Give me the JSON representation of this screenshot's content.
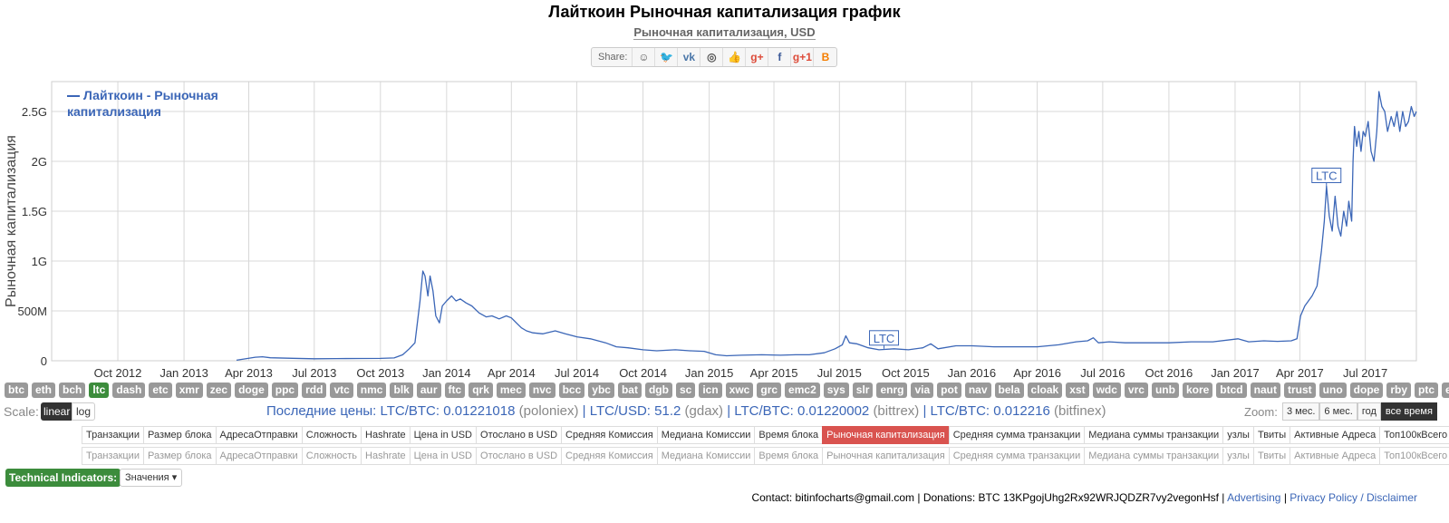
{
  "header": {
    "title": "Лайткоин Рыночная капитализация график",
    "subtitle": "Рыночная капитализация, USD"
  },
  "share": {
    "label": "Share:",
    "buttons": [
      {
        "name": "reddit-icon",
        "glyph": "☺",
        "color": "#555"
      },
      {
        "name": "twitter-icon",
        "glyph": "🐦",
        "color": "#1da1f2"
      },
      {
        "name": "vk-icon",
        "glyph": "vk",
        "color": "#4a76a8"
      },
      {
        "name": "weibo-icon",
        "glyph": "◎",
        "color": "#555"
      },
      {
        "name": "like-icon",
        "glyph": "👍",
        "color": "#4a76a8"
      },
      {
        "name": "googleplus-icon",
        "glyph": "g+",
        "color": "#dd4b39"
      },
      {
        "name": "facebook-icon",
        "glyph": "f",
        "color": "#3b5998"
      },
      {
        "name": "gplusone-icon",
        "glyph": "g+1",
        "color": "#dd4b39"
      },
      {
        "name": "blogger-icon",
        "glyph": "B",
        "color": "#f57d00"
      }
    ]
  },
  "chart_data": {
    "type": "line",
    "title": "Лайткоин Рыночная капитализация график",
    "subtitle": "Рыночная капитализация, USD",
    "ylabel": "Рыночная капитализация",
    "xlabel": "",
    "ylim": [
      0,
      2800000000
    ],
    "xlim": [
      "2012-07-01",
      "2017-09-10"
    ],
    "yticks": [
      {
        "v": 0,
        "label": "0"
      },
      {
        "v": 500000000,
        "label": "500M"
      },
      {
        "v": 1000000000,
        "label": "1G"
      },
      {
        "v": 1500000000,
        "label": "1.5G"
      },
      {
        "v": 2000000000,
        "label": "2G"
      },
      {
        "v": 2500000000,
        "label": "2.5G"
      }
    ],
    "xticks": [
      {
        "d": "2012-10-01",
        "label": "Oct 2012"
      },
      {
        "d": "2013-01-01",
        "label": "Jan 2013"
      },
      {
        "d": "2013-04-01",
        "label": "Apr 2013"
      },
      {
        "d": "2013-07-01",
        "label": "Jul 2013"
      },
      {
        "d": "2013-10-01",
        "label": "Oct 2013"
      },
      {
        "d": "2014-01-01",
        "label": "Jan 2014"
      },
      {
        "d": "2014-04-01",
        "label": "Apr 2014"
      },
      {
        "d": "2014-07-01",
        "label": "Jul 2014"
      },
      {
        "d": "2014-10-01",
        "label": "Oct 2014"
      },
      {
        "d": "2015-01-01",
        "label": "Jan 2015"
      },
      {
        "d": "2015-04-01",
        "label": "Apr 2015"
      },
      {
        "d": "2015-07-01",
        "label": "Jul 2015"
      },
      {
        "d": "2015-10-01",
        "label": "Oct 2015"
      },
      {
        "d": "2016-01-01",
        "label": "Jan 2016"
      },
      {
        "d": "2016-04-01",
        "label": "Apr 2016"
      },
      {
        "d": "2016-07-01",
        "label": "Jul 2016"
      },
      {
        "d": "2016-10-01",
        "label": "Oct 2016"
      },
      {
        "d": "2017-01-01",
        "label": "Jan 2017"
      },
      {
        "d": "2017-04-01",
        "label": "Apr 2017"
      },
      {
        "d": "2017-07-01",
        "label": "Jul 2017"
      }
    ],
    "grid": true,
    "legend": {
      "position": "top-left",
      "label": "Лайткоин - Рыночная капитализация"
    },
    "series": [
      {
        "name": "Лайткоин - Рыночная капитализация",
        "color": "#3b66b7",
        "points": [
          [
            "2013-03-15",
            5000000
          ],
          [
            "2013-04-10",
            35000000
          ],
          [
            "2013-04-20",
            40000000
          ],
          [
            "2013-05-01",
            30000000
          ],
          [
            "2013-06-01",
            25000000
          ],
          [
            "2013-07-01",
            20000000
          ],
          [
            "2013-08-01",
            22000000
          ],
          [
            "2013-09-01",
            23000000
          ],
          [
            "2013-10-01",
            24000000
          ],
          [
            "2013-10-20",
            28000000
          ],
          [
            "2013-11-01",
            60000000
          ],
          [
            "2013-11-10",
            120000000
          ],
          [
            "2013-11-18",
            180000000
          ],
          [
            "2013-11-25",
            600000000
          ],
          [
            "2013-11-29",
            900000000
          ],
          [
            "2013-12-02",
            850000000
          ],
          [
            "2013-12-06",
            650000000
          ],
          [
            "2013-12-09",
            850000000
          ],
          [
            "2013-12-13",
            700000000
          ],
          [
            "2013-12-17",
            450000000
          ],
          [
            "2013-12-22",
            380000000
          ],
          [
            "2013-12-26",
            550000000
          ],
          [
            "2014-01-01",
            600000000
          ],
          [
            "2014-01-08",
            650000000
          ],
          [
            "2014-01-14",
            600000000
          ],
          [
            "2014-01-20",
            620000000
          ],
          [
            "2014-01-28",
            580000000
          ],
          [
            "2014-02-05",
            550000000
          ],
          [
            "2014-02-15",
            480000000
          ],
          [
            "2014-02-25",
            440000000
          ],
          [
            "2014-03-05",
            450000000
          ],
          [
            "2014-03-15",
            420000000
          ],
          [
            "2014-03-25",
            450000000
          ],
          [
            "2014-04-01",
            430000000
          ],
          [
            "2014-04-08",
            380000000
          ],
          [
            "2014-04-15",
            330000000
          ],
          [
            "2014-04-22",
            300000000
          ],
          [
            "2014-05-01",
            280000000
          ],
          [
            "2014-05-15",
            270000000
          ],
          [
            "2014-06-01",
            300000000
          ],
          [
            "2014-06-15",
            270000000
          ],
          [
            "2014-07-01",
            240000000
          ],
          [
            "2014-07-20",
            220000000
          ],
          [
            "2014-08-10",
            180000000
          ],
          [
            "2014-08-25",
            140000000
          ],
          [
            "2014-09-10",
            130000000
          ],
          [
            "2014-10-01",
            110000000
          ],
          [
            "2014-10-20",
            100000000
          ],
          [
            "2014-11-15",
            110000000
          ],
          [
            "2014-12-05",
            100000000
          ],
          [
            "2014-12-25",
            95000000
          ],
          [
            "2015-01-10",
            60000000
          ],
          [
            "2015-01-25",
            50000000
          ],
          [
            "2015-02-15",
            55000000
          ],
          [
            "2015-03-15",
            60000000
          ],
          [
            "2015-04-10",
            55000000
          ],
          [
            "2015-05-01",
            60000000
          ],
          [
            "2015-05-20",
            60000000
          ],
          [
            "2015-06-10",
            80000000
          ],
          [
            "2015-06-25",
            120000000
          ],
          [
            "2015-07-05",
            160000000
          ],
          [
            "2015-07-10",
            250000000
          ],
          [
            "2015-07-15",
            180000000
          ],
          [
            "2015-07-25",
            170000000
          ],
          [
            "2015-08-10",
            130000000
          ],
          [
            "2015-08-25",
            110000000
          ],
          [
            "2015-09-15",
            120000000
          ],
          [
            "2015-10-05",
            110000000
          ],
          [
            "2015-10-25",
            130000000
          ],
          [
            "2015-11-05",
            170000000
          ],
          [
            "2015-11-15",
            120000000
          ],
          [
            "2015-12-10",
            150000000
          ],
          [
            "2016-01-01",
            150000000
          ],
          [
            "2016-02-01",
            140000000
          ],
          [
            "2016-03-01",
            140000000
          ],
          [
            "2016-04-01",
            140000000
          ],
          [
            "2016-05-01",
            160000000
          ],
          [
            "2016-05-25",
            190000000
          ],
          [
            "2016-06-10",
            200000000
          ],
          [
            "2016-06-18",
            230000000
          ],
          [
            "2016-06-25",
            180000000
          ],
          [
            "2016-07-10",
            190000000
          ],
          [
            "2016-08-01",
            180000000
          ],
          [
            "2016-09-01",
            180000000
          ],
          [
            "2016-10-01",
            180000000
          ],
          [
            "2016-11-01",
            190000000
          ],
          [
            "2016-12-01",
            190000000
          ],
          [
            "2017-01-05",
            220000000
          ],
          [
            "2017-01-20",
            190000000
          ],
          [
            "2017-02-10",
            200000000
          ],
          [
            "2017-03-01",
            195000000
          ],
          [
            "2017-03-20",
            200000000
          ],
          [
            "2017-03-28",
            220000000
          ],
          [
            "2017-04-02",
            450000000
          ],
          [
            "2017-04-08",
            550000000
          ],
          [
            "2017-04-18",
            650000000
          ],
          [
            "2017-04-25",
            750000000
          ],
          [
            "2017-05-01",
            1100000000
          ],
          [
            "2017-05-05",
            1400000000
          ],
          [
            "2017-05-08",
            1750000000
          ],
          [
            "2017-05-12",
            1450000000
          ],
          [
            "2017-05-16",
            1300000000
          ],
          [
            "2017-05-20",
            1650000000
          ],
          [
            "2017-05-24",
            1350000000
          ],
          [
            "2017-05-28",
            1250000000
          ],
          [
            "2017-06-01",
            1500000000
          ],
          [
            "2017-06-05",
            1350000000
          ],
          [
            "2017-06-08",
            1600000000
          ],
          [
            "2017-06-12",
            1400000000
          ],
          [
            "2017-06-14",
            2000000000
          ],
          [
            "2017-06-16",
            2350000000
          ],
          [
            "2017-06-19",
            2150000000
          ],
          [
            "2017-06-22",
            2300000000
          ],
          [
            "2017-06-25",
            2100000000
          ],
          [
            "2017-06-28",
            2300000000
          ],
          [
            "2017-07-01",
            2250000000
          ],
          [
            "2017-07-05",
            2400000000
          ],
          [
            "2017-07-09",
            2100000000
          ],
          [
            "2017-07-13",
            2000000000
          ],
          [
            "2017-07-17",
            2300000000
          ],
          [
            "2017-07-20",
            2700000000
          ],
          [
            "2017-07-24",
            2550000000
          ],
          [
            "2017-07-28",
            2500000000
          ],
          [
            "2017-08-01",
            2300000000
          ],
          [
            "2017-08-06",
            2450000000
          ],
          [
            "2017-08-10",
            2350000000
          ],
          [
            "2017-08-14",
            2500000000
          ],
          [
            "2017-08-18",
            2300000000
          ],
          [
            "2017-08-22",
            2500000000
          ],
          [
            "2017-08-26",
            2350000000
          ],
          [
            "2017-08-30",
            2400000000
          ],
          [
            "2017-09-03",
            2550000000
          ],
          [
            "2017-09-07",
            2450000000
          ],
          [
            "2017-09-10",
            2500000000
          ]
        ]
      }
    ],
    "annotations": [
      {
        "d": "2015-09-01",
        "v": 120000000,
        "label": "LTC"
      },
      {
        "d": "2017-05-08",
        "v": 1750000000,
        "label": "LTC"
      }
    ]
  },
  "coins": [
    "btc",
    "eth",
    "bch",
    "ltc",
    "dash",
    "etc",
    "xmr",
    "zec",
    "doge",
    "ppc",
    "rdd",
    "vtc",
    "nmc",
    "blk",
    "aur",
    "ftc",
    "qrk",
    "mec",
    "nvc",
    "bcc",
    "ybc",
    "bat",
    "dgb",
    "sc",
    "icn",
    "xwc",
    "grc",
    "emc2",
    "sys",
    "slr",
    "enrg",
    "via",
    "pot",
    "nav",
    "bela",
    "cloak",
    "xst",
    "wdc",
    "vrc",
    "unb",
    "kore",
    "btcd",
    "naut",
    "trust",
    "uno",
    "dope",
    "rby",
    "ptc",
    "efl"
  ],
  "active_coin": "ltc",
  "scale": {
    "label": "Scale:",
    "linear": "linear",
    "log": "log"
  },
  "prices": {
    "label": "Последние цены:",
    "items": [
      {
        "pair": "LTC/BTC: 0.01221018",
        "src": "(poloniex)"
      },
      {
        "pair": "LTC/USD: 51.2",
        "src": "(gdax)"
      },
      {
        "pair": "LTC/BTC: 0.01220002",
        "src": "(bittrex)"
      },
      {
        "pair": "LTC/BTC: 0.012216",
        "src": "(bitfinex)"
      }
    ]
  },
  "zoom": {
    "label": "Zoom:",
    "options": [
      "3 мес.",
      "6 мес.",
      "год",
      "все время"
    ],
    "active": "все время"
  },
  "tabs_row1": [
    "Транзакции",
    "Размер блока",
    "АдресаОтправки",
    "Сложность",
    "Hashrate",
    "Цена in USD",
    "Отослано в USD",
    "Средняя Комиссия",
    "Медиана Комиссии",
    "Время блока",
    "Рыночная капитализация",
    "Средняя сумма транзакции",
    "Медиана суммы транзакции",
    "узлы",
    "Твиты",
    "Активные Адреса",
    "Топ100кВсего"
  ],
  "tabs_row2": [
    "Транзакции",
    "Размер блока",
    "АдресаОтправки",
    "Сложность",
    "Hashrate",
    "Цена in USD",
    "Отослано в USD",
    "Средняя Комиссия",
    "Медиана Комиссии",
    "Время блока",
    "Рыночная капитализация",
    "Средняя сумма транзакции",
    "Медиана суммы транзакции",
    "узлы",
    "Твиты",
    "Активные Адреса",
    "Топ100кВсего"
  ],
  "active_tab": "Рыночная капитализация",
  "technical": {
    "label": "Technical Indicators:",
    "select": "Значения"
  },
  "footer": {
    "contact": "Contact: bitinfocharts@gmail.com | Donations: BTC 13KPgojUhg2Rx92WRJQDZR7vy2vegonHsf |",
    "advertising": "Advertising",
    "sep": "|",
    "privacy": "Privacy Policy / Disclaimer"
  }
}
